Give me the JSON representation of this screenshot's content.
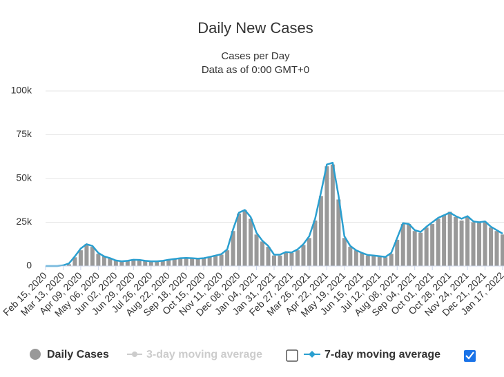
{
  "chart_data": {
    "type": "bar",
    "title": "Daily New Cases",
    "subtitle": "Cases per Day",
    "note": "Data as of 0:00 GMT+0",
    "categories": [
      "Feb 15, 2020",
      null,
      null,
      "Mar 13, 2020",
      null,
      null,
      "Apr 09, 2020",
      null,
      null,
      "May 06, 2020",
      null,
      null,
      "Jun 02, 2020",
      null,
      null,
      "Jun 29, 2020",
      null,
      null,
      "Jul 26, 2020",
      null,
      null,
      "Aug 22, 2020",
      null,
      null,
      "Sep 18, 2020",
      null,
      null,
      "Oct 15, 2020",
      null,
      null,
      "Nov 11, 2020",
      null,
      null,
      "Dec 08, 2020",
      null,
      null,
      "Jan 04, 2021",
      null,
      null,
      "Jan 31, 2021",
      null,
      null,
      "Feb 27, 2021",
      null,
      null,
      "Mar 26, 2021",
      null,
      null,
      "Apr 22, 2021",
      null,
      null,
      "May 19, 2021",
      null,
      null,
      "Jun 15, 2021",
      null,
      null,
      "Jul 12, 2021",
      null,
      null,
      "Aug 08, 2021",
      null,
      null,
      "Sep 04, 2021",
      null,
      null,
      "Oct 01, 2021",
      null,
      null,
      "Oct 28, 2021",
      null,
      null,
      "Nov 24, 2021",
      null,
      null,
      "Dec 21, 2021",
      null,
      null,
      "Jan 17, 2022"
    ],
    "series": [
      {
        "name": "Daily Cases",
        "type": "bar",
        "color": "#999999",
        "values": [
          0,
          0,
          0,
          500,
          1000,
          5000,
          9000,
          12500,
          11000,
          7000,
          5500,
          4500,
          3000,
          2500,
          3000,
          3500,
          3500,
          3000,
          2500,
          2500,
          3000,
          3500,
          4000,
          4500,
          4500,
          4500,
          4000,
          4500,
          5000,
          6000,
          6500,
          9000,
          20000,
          30000,
          32000,
          27000,
          18000,
          14000,
          11000,
          6000,
          6000,
          7500,
          7500,
          9000,
          12000,
          16000,
          26000,
          40000,
          57000,
          58000,
          38000,
          16000,
          11000,
          9000,
          7500,
          6000,
          6000,
          5500,
          5000,
          7000,
          15000,
          24000,
          24000,
          20000,
          19000,
          22000,
          24000,
          27000,
          29000,
          31000,
          28000,
          26000,
          28000,
          25000,
          25000,
          25000,
          22000,
          20000,
          18000
        ]
      },
      {
        "name": "7-day moving average",
        "type": "line",
        "color": "#2a9fd0",
        "values": [
          0,
          0,
          0,
          400,
          1500,
          5500,
          10000,
          12500,
          11500,
          7500,
          5500,
          4500,
          3200,
          2700,
          3000,
          3600,
          3500,
          3000,
          2700,
          2700,
          3000,
          3600,
          4000,
          4500,
          4600,
          4500,
          4200,
          4500,
          5200,
          6000,
          6800,
          9500,
          21000,
          30500,
          32000,
          28000,
          19000,
          14500,
          11500,
          6500,
          6500,
          8000,
          7800,
          9500,
          12500,
          17000,
          27000,
          42000,
          58000,
          59000,
          40000,
          17000,
          11500,
          9000,
          7500,
          6300,
          6000,
          5600,
          5200,
          7500,
          16000,
          24500,
          24000,
          20500,
          19500,
          22500,
          25000,
          27500,
          29000,
          30500,
          28500,
          27000,
          28500,
          25500,
          25000,
          25500,
          22500,
          20500,
          18500
        ]
      }
    ],
    "hidden_series": [
      {
        "name": "3-day moving average",
        "color": "#cccccc"
      }
    ],
    "ylim": [
      0,
      100000
    ],
    "yticks": [
      {
        "value": 0,
        "label": "0"
      },
      {
        "value": 25000,
        "label": "25k"
      },
      {
        "value": 50000,
        "label": "50k"
      },
      {
        "value": 75000,
        "label": "75k"
      },
      {
        "value": 100000,
        "label": "100k"
      }
    ],
    "grid": true
  }
}
